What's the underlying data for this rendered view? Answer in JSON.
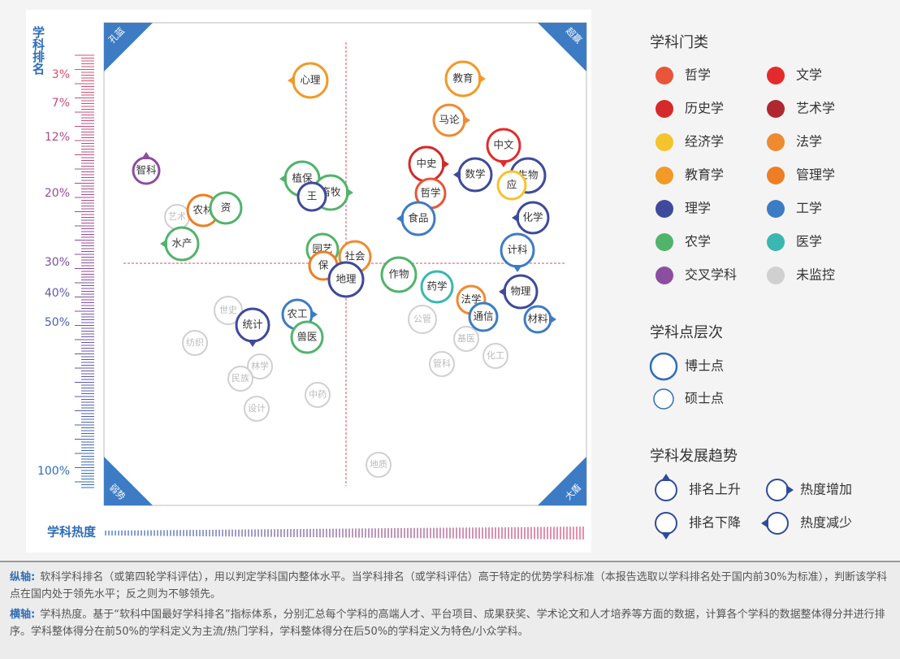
{
  "y_axis": {
    "title": "学科排名",
    "ticks": [
      "3%",
      "7%",
      "12%",
      "20%",
      "30%",
      "40%",
      "50%",
      "100%"
    ]
  },
  "x_axis": {
    "title": "学科热度"
  },
  "corners": [
    "孔蓝",
    "超赢",
    "弱势",
    "大盾"
  ],
  "legend": {
    "title": "学科门类",
    "items": [
      {
        "label": "哲学",
        "color": "#e8553a"
      },
      {
        "label": "文学",
        "color": "#e32b2b"
      },
      {
        "label": "历史学",
        "color": "#d42a2a"
      },
      {
        "label": "艺术学",
        "color": "#b0272f"
      },
      {
        "label": "经济学",
        "color": "#f5c32c"
      },
      {
        "label": "法学",
        "color": "#ef8a30"
      },
      {
        "label": "教育学",
        "color": "#f19a28"
      },
      {
        "label": "管理学",
        "color": "#ee7d24"
      },
      {
        "label": "理学",
        "color": "#3f4a9b"
      },
      {
        "label": "工学",
        "color": "#3d7cc4"
      },
      {
        "label": "农学",
        "color": "#52b36b"
      },
      {
        "label": "医学",
        "color": "#3ab7b0"
      },
      {
        "label": "交叉学科",
        "color": "#8c4ea0"
      },
      {
        "label": "未监控",
        "color": "#d0d0d0"
      }
    ]
  },
  "levels": {
    "title": "学科点层次",
    "items": [
      "博士点",
      "硕士点"
    ]
  },
  "trends": {
    "title": "学科发展趋势",
    "items": [
      "排名上升",
      "热度增加",
      "排名下降",
      "热度减少"
    ]
  },
  "nodes": [
    "艺术",
    "世史",
    "纺织",
    "林学",
    "民族",
    "设计",
    "中药",
    "地质",
    "公管",
    "基医",
    "管科",
    "化工",
    "心理",
    "教育",
    "马论",
    "中文",
    "智科",
    "中史",
    "数学",
    "生物",
    "应",
    "哲学",
    "植保",
    "畜牧",
    "王",
    "农林",
    "资",
    "食品",
    "化学",
    "水产",
    "园艺",
    "社会",
    "保",
    "计科",
    "地理",
    "作物",
    "药学",
    "物理",
    "法学",
    "通信",
    "材料",
    "统计",
    "农工",
    "兽医"
  ],
  "notes": [
    {
      "label": "纵轴:",
      "text": "软科学科排名（或第四轮学科评估），用以判定学科国内整体水平。当学科排名（或学科评估）高于特定的优势学科标准（本报告选取以学科排名处于国内前30%为标准），判断该学科点在国内处于领先水平；反之则为不够领先。"
    },
    {
      "label": "横轴:",
      "text": "学科热度。基于“软科中国最好学科排名”指标体系，分别汇总每个学科的高端人才、平台项目、成果获奖、学术论文和人才培养等方面的数据，计算各个学科的数据整体得分并进行排序。学科整体得分在前50%的学科定义为主流/热门学科，学科整体得分在后50%的学科定义为特色/小众学科。"
    }
  ]
}
